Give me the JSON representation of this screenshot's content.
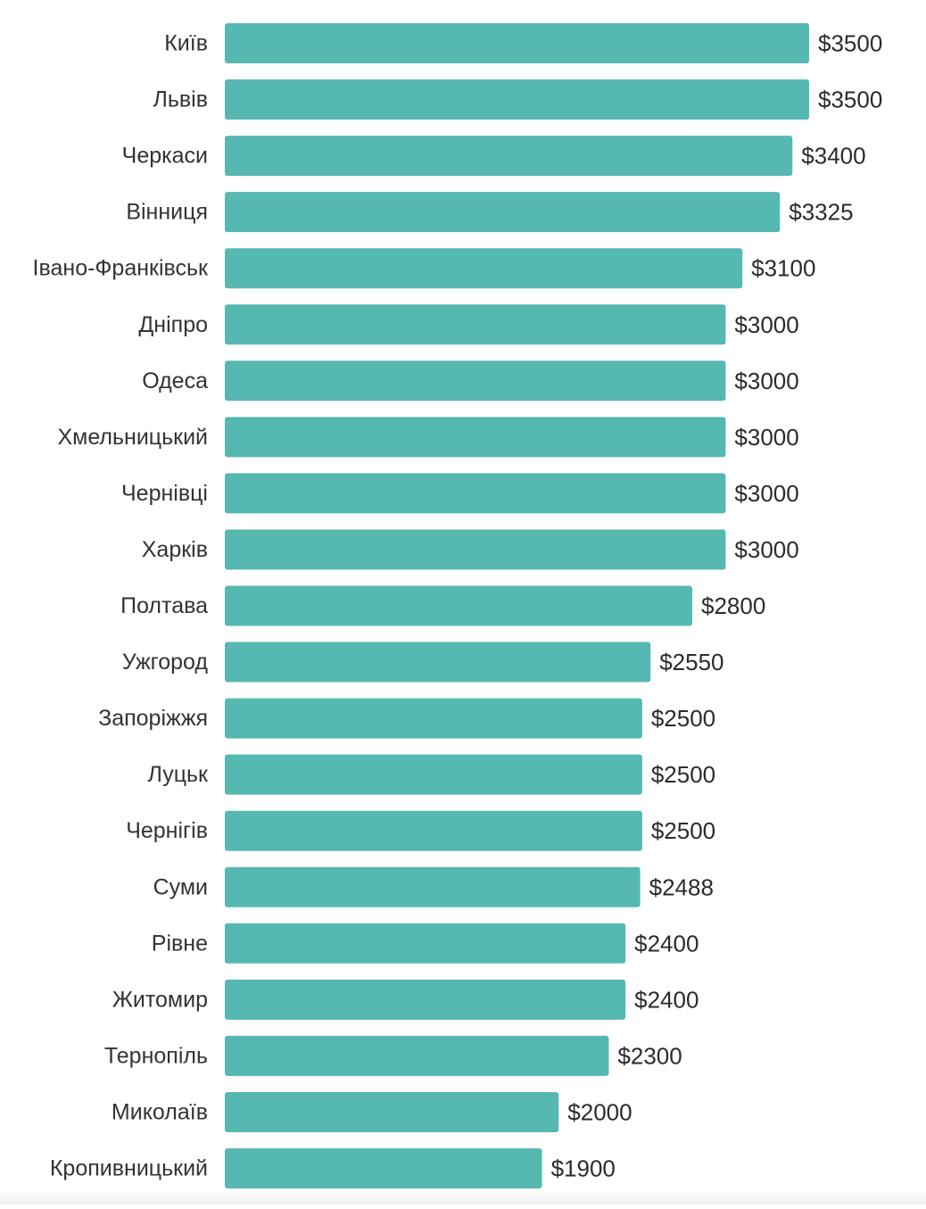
{
  "colors": {
    "bar": "#55b8b1",
    "label": "#333333",
    "value_label": "#2b2b2b"
  },
  "chart_data": {
    "type": "bar",
    "orientation": "horizontal",
    "title": "",
    "xlabel": "",
    "ylabel": "",
    "value_prefix": "$",
    "xlim": [
      0,
      3500
    ],
    "grid": false,
    "legend": "none",
    "categories": [
      "Київ",
      "Львів",
      "Черкаси",
      "Вінниця",
      "Івано-Франківськ",
      "Дніпро",
      "Одеса",
      "Хмельницький",
      "Чернівці",
      "Харків",
      "Полтава",
      "Ужгород",
      "Запоріжжя",
      "Луцьк",
      "Чернігів",
      "Суми",
      "Рівне",
      "Житомир",
      "Тернопіль",
      "Миколаїв",
      "Кропивницький"
    ],
    "values": [
      3500,
      3500,
      3400,
      3325,
      3100,
      3000,
      3000,
      3000,
      3000,
      3000,
      2800,
      2550,
      2500,
      2500,
      2500,
      2488,
      2400,
      2400,
      2300,
      2000,
      1900
    ],
    "value_labels": [
      "$3500",
      "$3500",
      "$3400",
      "$3325",
      "$3100",
      "$3000",
      "$3000",
      "$3000",
      "$3000",
      "$3000",
      "$2800",
      "$2550",
      "$2500",
      "$2500",
      "$2500",
      "$2488",
      "$2400",
      "$2400",
      "$2300",
      "$2000",
      "$1900"
    ]
  }
}
